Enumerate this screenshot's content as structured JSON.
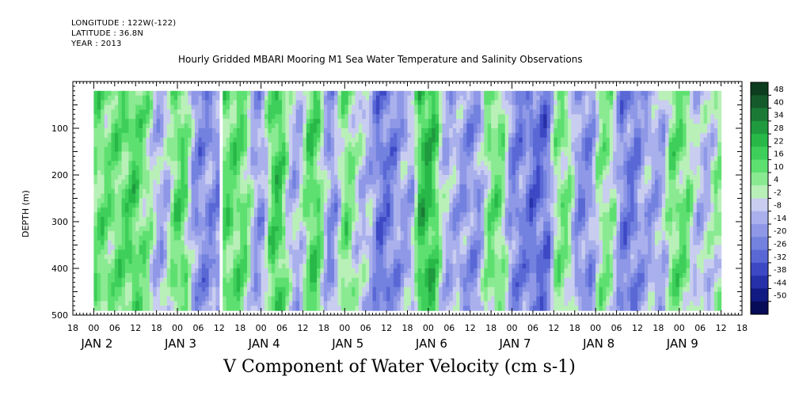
{
  "header": {
    "longitude": "LONGITUDE : 122W(-122)",
    "latitude": "LATITUDE : 36.8N",
    "year": "YEAR : 2013"
  },
  "chart_data": {
    "type": "heatmap",
    "title": "Hourly Gridded MBARI Mooring M1 Sea Water Temperature and Salinity Observations",
    "variable_label": "V Component of Water Velocity (cm s-1)",
    "ylabel": "DEPTH (m)",
    "y_axis": {
      "range": [
        500,
        0
      ],
      "ticks": [
        100,
        200,
        300,
        400,
        500
      ],
      "inverted": true
    },
    "x_axis": {
      "range_hours": [
        -6,
        186
      ],
      "hour_ticks": [
        "18",
        "00",
        "06",
        "12",
        "18",
        "00",
        "06",
        "12",
        "18",
        "00",
        "06",
        "12",
        "18",
        "00",
        "06",
        "12",
        "18",
        "00",
        "06",
        "12",
        "18",
        "00",
        "06",
        "12",
        "18",
        "00",
        "06",
        "12",
        "18",
        "00",
        "06",
        "12",
        "18"
      ],
      "day_labels": [
        {
          "text": "JAN  2",
          "hour": 0
        },
        {
          "text": "JAN  3",
          "hour": 24
        },
        {
          "text": "JAN  4",
          "hour": 48
        },
        {
          "text": "JAN  5",
          "hour": 72
        },
        {
          "text": "JAN  6",
          "hour": 96
        },
        {
          "text": "JAN  7",
          "hour": 120
        },
        {
          "text": "JAN  8",
          "hour": 144
        },
        {
          "text": "JAN  9",
          "hour": 168
        }
      ]
    },
    "colorbar": {
      "levels": [
        "48",
        "40",
        "34",
        "28",
        "22",
        "16",
        "10",
        "4",
        "-2",
        "-8",
        "-14",
        "-20",
        "-26",
        "-32",
        "-38",
        "-44",
        "-50"
      ],
      "colors": [
        "#0b3d1e",
        "#145a2b",
        "#1a7a35",
        "#1f9a3e",
        "#27b848",
        "#3ecf5a",
        "#5ee070",
        "#8aea92",
        "#b9f0b8",
        "#c9cdf0",
        "#a9b0ec",
        "#8e98e6",
        "#7381df",
        "#5a68d6",
        "#3d49c4",
        "#2630a8",
        "#101a82",
        "#060c55"
      ]
    },
    "data_gaps_hours": [
      [
        36,
        37
      ]
    ],
    "stripes": [
      {
        "hour": 8,
        "value": 10
      },
      {
        "hour": 11,
        "value": 18
      },
      {
        "hour": 14,
        "value": 6
      },
      {
        "hour": 19,
        "value": -12
      },
      {
        "hour": 24,
        "value": 14
      },
      {
        "hour": 30,
        "value": -18
      },
      {
        "hour": 42,
        "value": 12
      },
      {
        "hour": 47,
        "value": -16
      },
      {
        "hour": 52,
        "value": 20
      },
      {
        "hour": 57,
        "value": -10
      },
      {
        "hour": 63,
        "value": 16
      },
      {
        "hour": 68,
        "value": -20
      },
      {
        "hour": 72,
        "value": 14
      },
      {
        "hour": 76,
        "value": -8
      },
      {
        "hour": 84,
        "value": -24
      },
      {
        "hour": 88,
        "value": -12
      },
      {
        "hour": 96,
        "value": 22
      },
      {
        "hour": 101,
        "value": -10
      },
      {
        "hour": 108,
        "value": -16
      },
      {
        "hour": 115,
        "value": 10
      },
      {
        "hour": 121,
        "value": -20
      },
      {
        "hour": 128,
        "value": -26
      },
      {
        "hour": 134,
        "value": 8
      },
      {
        "hour": 140,
        "value": -18
      },
      {
        "hour": 147,
        "value": 6
      },
      {
        "hour": 152,
        "value": -22
      },
      {
        "hour": 160,
        "value": -12
      },
      {
        "hour": 168,
        "value": 10
      },
      {
        "hour": 174,
        "value": -8
      },
      {
        "hour": 180,
        "value": 4
      }
    ]
  }
}
